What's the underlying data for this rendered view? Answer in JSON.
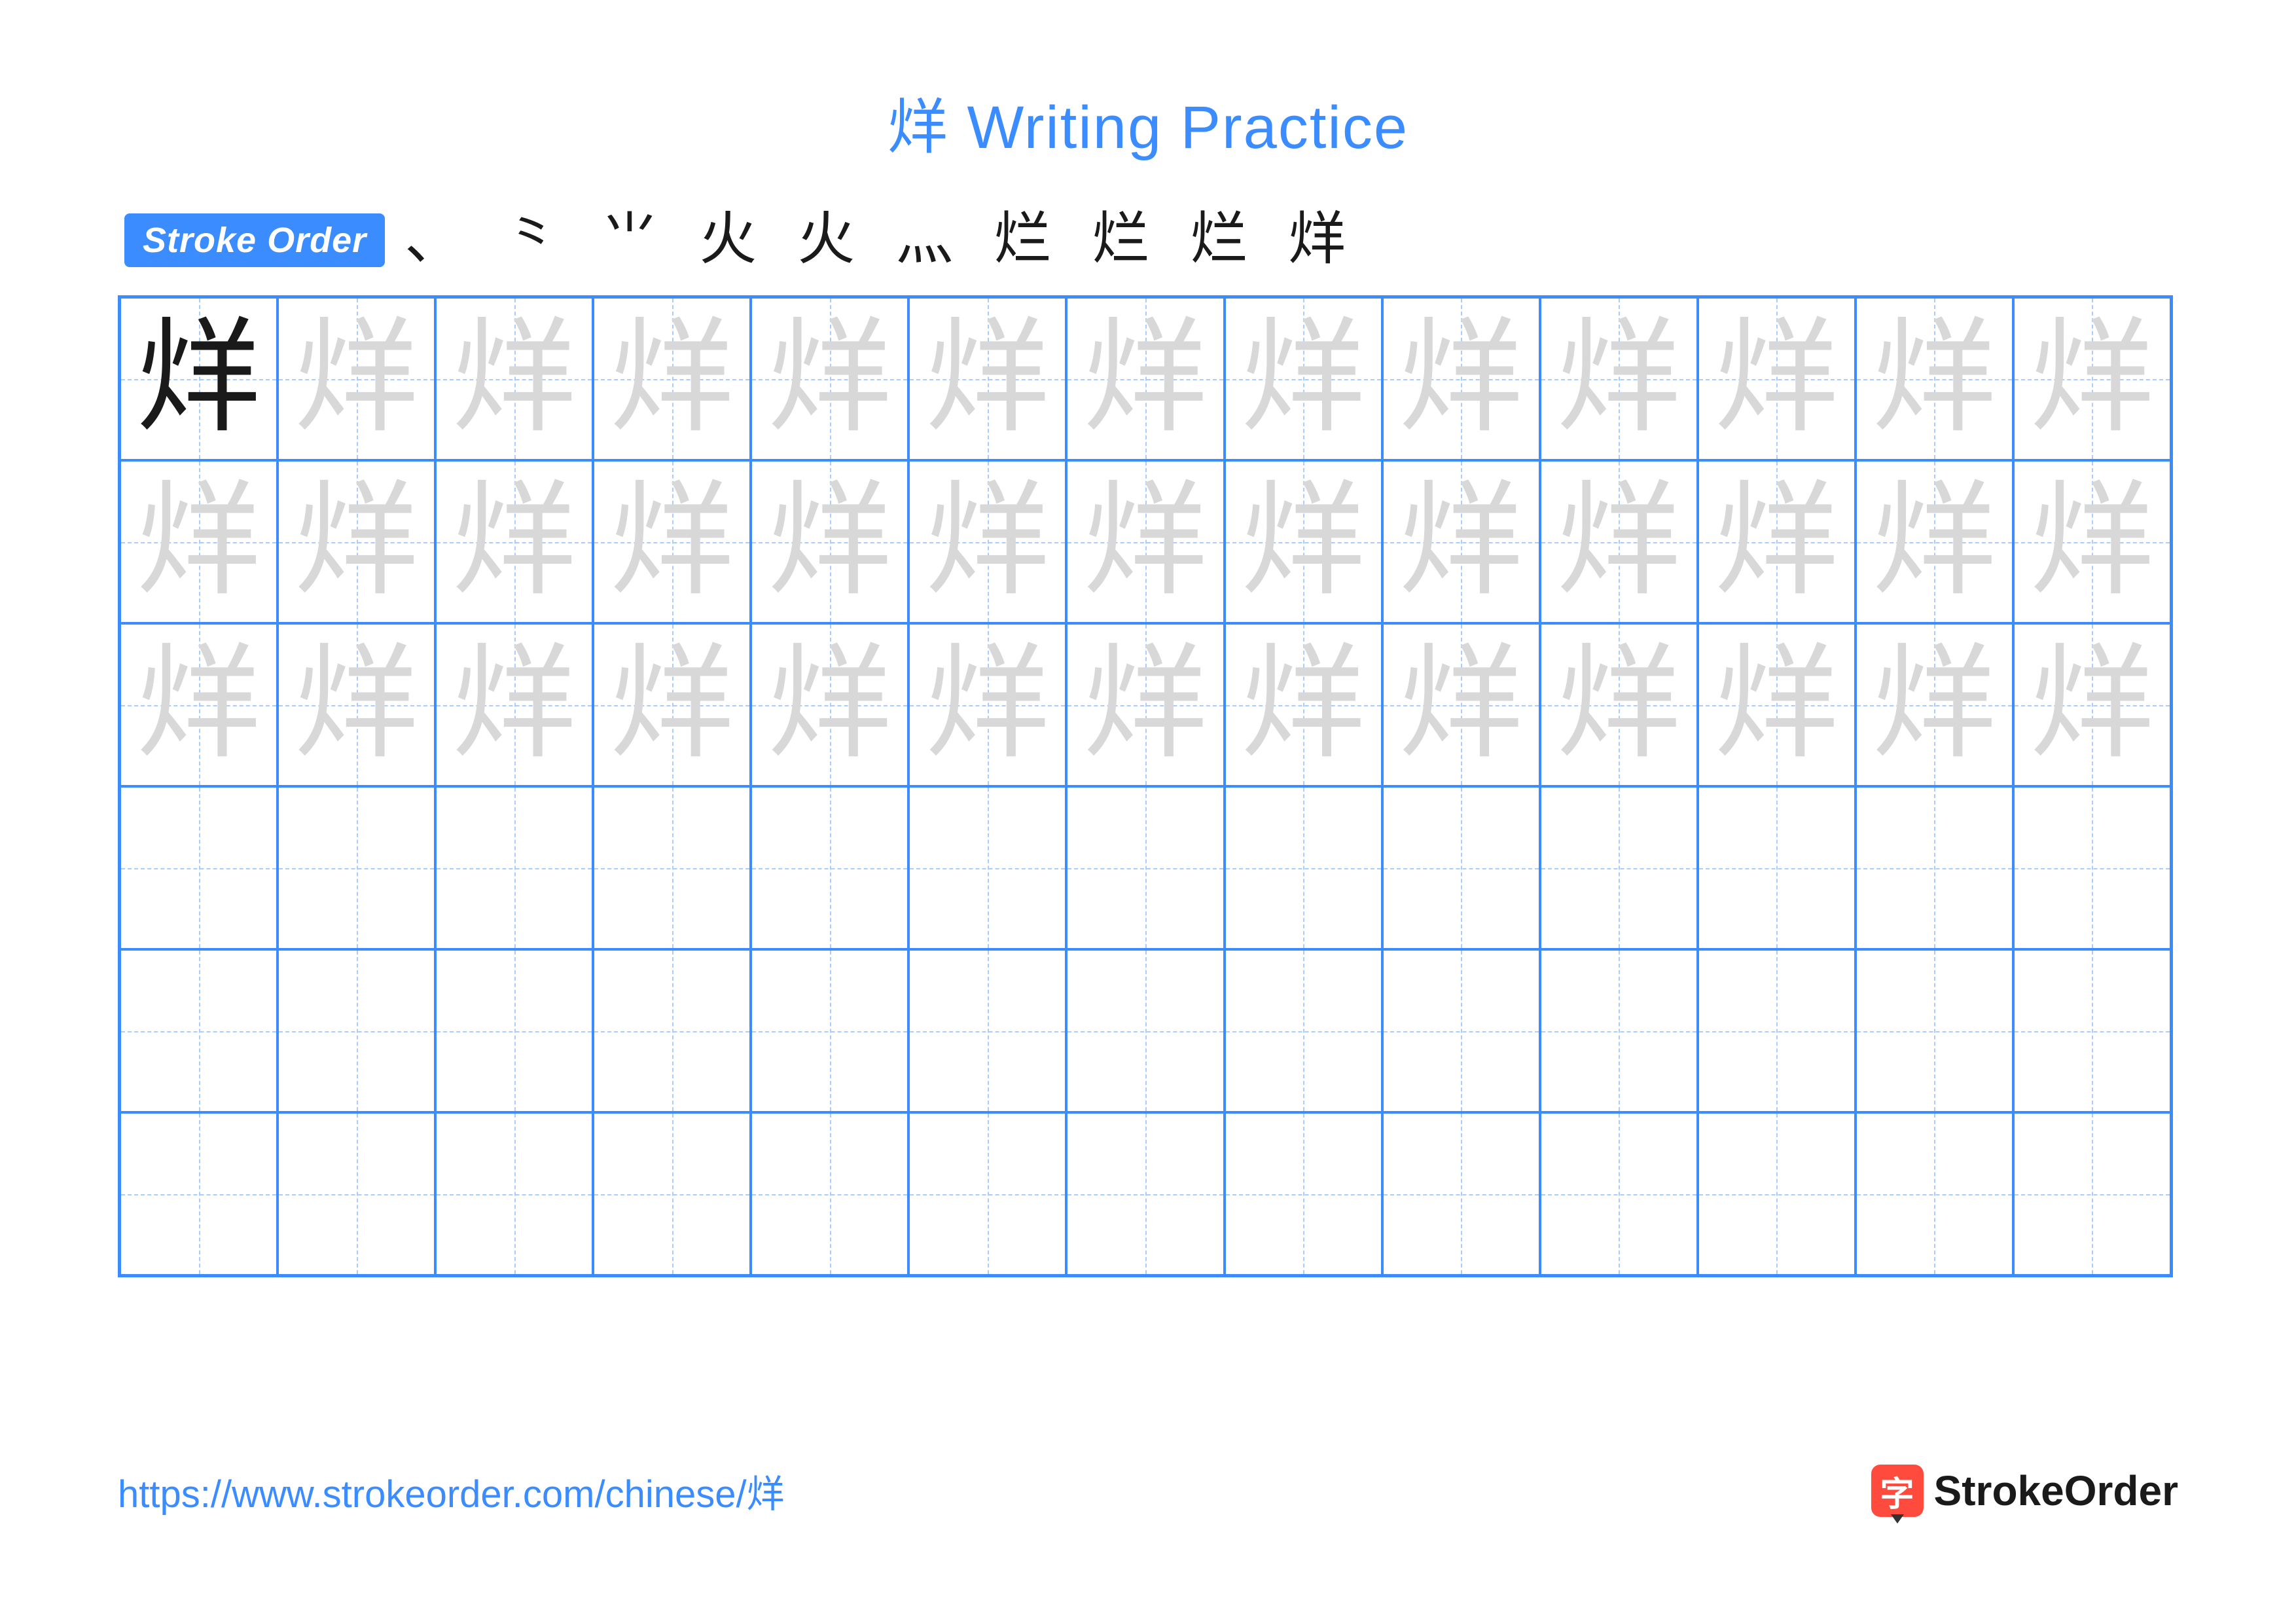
{
  "title": {
    "text": "烊 Writing Practice",
    "color": "#3a8cff",
    "fontsize": 92
  },
  "strokeOrder": {
    "badge": "Stroke Order",
    "badge_bg": "#3a8cff",
    "steps": [
      "、",
      "⺀",
      "⺌",
      "火",
      "火",
      "灬",
      "烂",
      "烂",
      "烂",
      "烊"
    ]
  },
  "character": "烊",
  "grid": {
    "cols": 13,
    "rows": 6,
    "border_color": "#3a8cff",
    "guide_color": "#a8cdff",
    "model_color": "#1a1a1a",
    "trace_color": "#d8d8d8",
    "trace_rows": 3,
    "empty_rows": 3
  },
  "footer": {
    "url": "https://www.strokeorder.com/chinese/烊",
    "url_color": "#3a8cff",
    "brand_text": "StrokeOrder",
    "brand_icon_char": "字",
    "brand_icon_bg": "#ff4b3e"
  }
}
